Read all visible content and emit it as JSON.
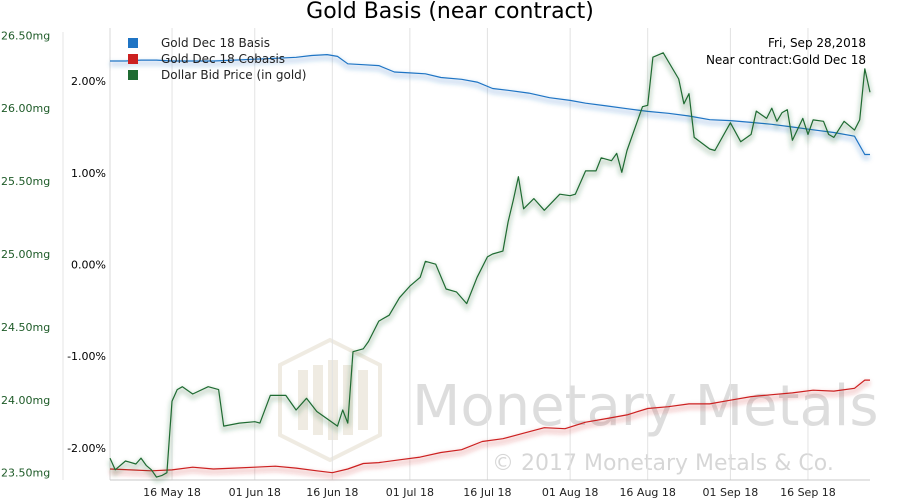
{
  "chart_data": {
    "type": "line",
    "title": "Gold Basis (near contract)",
    "info": {
      "date": "Fri, Sep 28,2018",
      "contract": "Near contract:Gold Dec 18"
    },
    "colors": {
      "basis": "#1f74c4",
      "cobasis": "#cc2020",
      "price": "#1f6b32"
    },
    "x_range": [
      "2018-05-04",
      "2018-09-28"
    ],
    "x_ticks": [
      {
        "date": "2018-05-16",
        "label": "16 May 18"
      },
      {
        "date": "2018-06-01",
        "label": "01 Jun 18"
      },
      {
        "date": "2018-06-16",
        "label": "16 Jun 18"
      },
      {
        "date": "2018-07-01",
        "label": "01 Jul 18"
      },
      {
        "date": "2018-07-16",
        "label": "16 Jul 18"
      },
      {
        "date": "2018-08-01",
        "label": "01 Aug 18"
      },
      {
        "date": "2018-08-16",
        "label": "16 Aug 18"
      },
      {
        "date": "2018-09-01",
        "label": "01 Sep 18"
      },
      {
        "date": "2018-09-16",
        "label": "16 Sep 18"
      }
    ],
    "y_left": {
      "unit": "mg",
      "range": [
        23.45,
        26.55
      ],
      "ticks": [
        {
          "value": 23.5,
          "label": "23.50mg"
        },
        {
          "value": 24.0,
          "label": "24.00mg"
        },
        {
          "value": 24.5,
          "label": "24.50mg"
        },
        {
          "value": 25.0,
          "label": "25.00mg"
        },
        {
          "value": 25.5,
          "label": "25.50mg"
        },
        {
          "value": 26.0,
          "label": "26.00mg"
        },
        {
          "value": 26.5,
          "label": "26.50mg"
        }
      ]
    },
    "y_right": {
      "unit": "%",
      "range": [
        -2.35,
        2.58
      ],
      "ticks": [
        {
          "value": -2.0,
          "label": "-2.00%"
        },
        {
          "value": -1.0,
          "label": "-1.00%"
        },
        {
          "value": 0.0,
          "label": "0.00%"
        },
        {
          "value": 1.0,
          "label": "1.00%"
        },
        {
          "value": 2.0,
          "label": "2.00%"
        }
      ]
    },
    "legend_position": "top-left",
    "legend": [
      {
        "key": "basis",
        "label": "Gold Dec 18 Basis"
      },
      {
        "key": "cobasis",
        "label": "Gold Dec 18 Cobasis"
      },
      {
        "key": "price",
        "label": "Dollar Bid Price (in gold)"
      }
    ],
    "series": [
      {
        "name": "Gold Dec 18 Basis",
        "key": "basis",
        "axis": "right",
        "points": [
          [
            "2018-05-04",
            2.22
          ],
          [
            "2018-05-07",
            2.22
          ],
          [
            "2018-05-10",
            2.23
          ],
          [
            "2018-05-13",
            2.23
          ],
          [
            "2018-05-16",
            2.22
          ],
          [
            "2018-05-20",
            2.22
          ],
          [
            "2018-05-24",
            2.22
          ],
          [
            "2018-05-28",
            2.23
          ],
          [
            "2018-06-01",
            2.24
          ],
          [
            "2018-06-05",
            2.25
          ],
          [
            "2018-06-09",
            2.26
          ],
          [
            "2018-06-12",
            2.28
          ],
          [
            "2018-06-15",
            2.29
          ],
          [
            "2018-06-17",
            2.27
          ],
          [
            "2018-06-19",
            2.19
          ],
          [
            "2018-06-22",
            2.18
          ],
          [
            "2018-06-25",
            2.17
          ],
          [
            "2018-06-28",
            2.1
          ],
          [
            "2018-07-01",
            2.09
          ],
          [
            "2018-07-04",
            2.08
          ],
          [
            "2018-07-07",
            2.04
          ],
          [
            "2018-07-11",
            2.02
          ],
          [
            "2018-07-14",
            1.99
          ],
          [
            "2018-07-17",
            1.92
          ],
          [
            "2018-07-20",
            1.9
          ],
          [
            "2018-07-24",
            1.87
          ],
          [
            "2018-07-28",
            1.82
          ],
          [
            "2018-08-01",
            1.79
          ],
          [
            "2018-08-04",
            1.76
          ],
          [
            "2018-08-08",
            1.73
          ],
          [
            "2018-08-12",
            1.7
          ],
          [
            "2018-08-16",
            1.67
          ],
          [
            "2018-08-20",
            1.65
          ],
          [
            "2018-08-24",
            1.62
          ],
          [
            "2018-08-28",
            1.58
          ],
          [
            "2018-09-01",
            1.57
          ],
          [
            "2018-09-05",
            1.55
          ],
          [
            "2018-09-09",
            1.53
          ],
          [
            "2018-09-13",
            1.5
          ],
          [
            "2018-09-17",
            1.47
          ],
          [
            "2018-09-21",
            1.44
          ],
          [
            "2018-09-25",
            1.4
          ],
          [
            "2018-09-27",
            1.2
          ],
          [
            "2018-09-28",
            1.2
          ]
        ]
      },
      {
        "name": "Gold Dec 18 Cobasis",
        "key": "cobasis",
        "axis": "right",
        "points": [
          [
            "2018-05-04",
            -2.23
          ],
          [
            "2018-05-08",
            -2.24
          ],
          [
            "2018-05-12",
            -2.25
          ],
          [
            "2018-05-16",
            -2.24
          ],
          [
            "2018-05-20",
            -2.21
          ],
          [
            "2018-05-24",
            -2.23
          ],
          [
            "2018-05-28",
            -2.22
          ],
          [
            "2018-06-01",
            -2.21
          ],
          [
            "2018-06-05",
            -2.2
          ],
          [
            "2018-06-09",
            -2.22
          ],
          [
            "2018-06-13",
            -2.25
          ],
          [
            "2018-06-16",
            -2.27
          ],
          [
            "2018-06-19",
            -2.23
          ],
          [
            "2018-06-22",
            -2.17
          ],
          [
            "2018-06-25",
            -2.16
          ],
          [
            "2018-06-29",
            -2.13
          ],
          [
            "2018-07-03",
            -2.1
          ],
          [
            "2018-07-07",
            -2.05
          ],
          [
            "2018-07-11",
            -2.02
          ],
          [
            "2018-07-15",
            -1.93
          ],
          [
            "2018-07-19",
            -1.9
          ],
          [
            "2018-07-23",
            -1.84
          ],
          [
            "2018-07-27",
            -1.78
          ],
          [
            "2018-07-31",
            -1.79
          ],
          [
            "2018-08-04",
            -1.72
          ],
          [
            "2018-08-08",
            -1.68
          ],
          [
            "2018-08-12",
            -1.64
          ],
          [
            "2018-08-16",
            -1.57
          ],
          [
            "2018-08-20",
            -1.55
          ],
          [
            "2018-08-24",
            -1.52
          ],
          [
            "2018-08-28",
            -1.52
          ],
          [
            "2018-09-01",
            -1.48
          ],
          [
            "2018-09-05",
            -1.44
          ],
          [
            "2018-09-09",
            -1.42
          ],
          [
            "2018-09-13",
            -1.4
          ],
          [
            "2018-09-17",
            -1.37
          ],
          [
            "2018-09-21",
            -1.38
          ],
          [
            "2018-09-25",
            -1.35
          ],
          [
            "2018-09-27",
            -1.26
          ],
          [
            "2018-09-28",
            -1.26
          ]
        ]
      },
      {
        "name": "Dollar Bid Price (in gold)",
        "key": "price",
        "axis": "left",
        "points": [
          [
            "2018-05-04",
            23.6
          ],
          [
            "2018-05-05",
            23.52
          ],
          [
            "2018-05-07",
            23.58
          ],
          [
            "2018-05-09",
            23.56
          ],
          [
            "2018-05-10",
            23.6
          ],
          [
            "2018-05-11",
            23.55
          ],
          [
            "2018-05-12",
            23.52
          ],
          [
            "2018-05-13",
            23.47
          ],
          [
            "2018-05-14",
            23.48
          ],
          [
            "2018-05-15",
            23.5
          ],
          [
            "2018-05-16",
            23.99
          ],
          [
            "2018-05-17",
            24.07
          ],
          [
            "2018-05-18",
            24.09
          ],
          [
            "2018-05-20",
            24.04
          ],
          [
            "2018-05-23",
            24.09
          ],
          [
            "2018-05-25",
            24.07
          ],
          [
            "2018-05-26",
            23.82
          ],
          [
            "2018-05-29",
            23.84
          ],
          [
            "2018-06-01",
            23.85
          ],
          [
            "2018-06-02",
            23.84
          ],
          [
            "2018-06-04",
            24.03
          ],
          [
            "2018-06-07",
            24.03
          ],
          [
            "2018-06-09",
            23.93
          ],
          [
            "2018-06-11",
            24.01
          ],
          [
            "2018-06-13",
            23.92
          ],
          [
            "2018-06-15",
            23.87
          ],
          [
            "2018-06-17",
            23.82
          ],
          [
            "2018-06-18",
            23.93
          ],
          [
            "2018-06-19",
            23.84
          ],
          [
            "2018-06-20",
            24.33
          ],
          [
            "2018-06-22",
            24.35
          ],
          [
            "2018-06-23",
            24.4
          ],
          [
            "2018-06-25",
            24.54
          ],
          [
            "2018-06-27",
            24.58
          ],
          [
            "2018-06-29",
            24.7
          ],
          [
            "2018-07-01",
            24.78
          ],
          [
            "2018-07-03",
            24.84
          ],
          [
            "2018-07-04",
            24.95
          ],
          [
            "2018-07-06",
            24.93
          ],
          [
            "2018-07-08",
            24.76
          ],
          [
            "2018-07-10",
            24.74
          ],
          [
            "2018-07-12",
            24.66
          ],
          [
            "2018-07-14",
            24.84
          ],
          [
            "2018-07-16",
            24.98
          ],
          [
            "2018-07-17",
            25.0
          ],
          [
            "2018-07-19",
            25.02
          ],
          [
            "2018-07-20",
            25.22
          ],
          [
            "2018-07-21",
            25.37
          ],
          [
            "2018-07-22",
            25.53
          ],
          [
            "2018-07-23",
            25.31
          ],
          [
            "2018-07-25",
            25.38
          ],
          [
            "2018-07-27",
            25.3
          ],
          [
            "2018-07-30",
            25.41
          ],
          [
            "2018-08-01",
            25.4
          ],
          [
            "2018-08-02",
            25.41
          ],
          [
            "2018-08-04",
            25.57
          ],
          [
            "2018-08-06",
            25.57
          ],
          [
            "2018-08-07",
            25.66
          ],
          [
            "2018-08-09",
            25.64
          ],
          [
            "2018-08-10",
            25.69
          ],
          [
            "2018-08-11",
            25.56
          ],
          [
            "2018-08-12",
            25.71
          ],
          [
            "2018-08-15",
            26.01
          ],
          [
            "2018-08-16",
            26.02
          ],
          [
            "2018-08-17",
            26.35
          ],
          [
            "2018-08-19",
            26.38
          ],
          [
            "2018-08-22",
            26.2
          ],
          [
            "2018-08-23",
            26.03
          ],
          [
            "2018-08-24",
            26.1
          ],
          [
            "2018-08-25",
            25.8
          ],
          [
            "2018-08-28",
            25.72
          ],
          [
            "2018-08-29",
            25.71
          ],
          [
            "2018-09-01",
            25.9
          ],
          [
            "2018-09-03",
            25.77
          ],
          [
            "2018-09-05",
            25.82
          ],
          [
            "2018-09-06",
            25.98
          ],
          [
            "2018-09-08",
            25.93
          ],
          [
            "2018-09-09",
            26.0
          ],
          [
            "2018-09-10",
            25.91
          ],
          [
            "2018-09-11",
            25.97
          ],
          [
            "2018-09-12",
            25.99
          ],
          [
            "2018-09-13",
            25.78
          ],
          [
            "2018-09-15",
            25.93
          ],
          [
            "2018-09-16",
            25.82
          ],
          [
            "2018-09-17",
            25.92
          ],
          [
            "2018-09-19",
            25.91
          ],
          [
            "2018-09-20",
            25.82
          ],
          [
            "2018-09-21",
            25.8
          ],
          [
            "2018-09-23",
            25.91
          ],
          [
            "2018-09-24",
            25.88
          ],
          [
            "2018-09-25",
            25.85
          ],
          [
            "2018-09-26",
            25.92
          ],
          [
            "2018-09-27",
            26.27
          ],
          [
            "2018-09-28",
            26.11
          ]
        ]
      }
    ]
  },
  "watermark": {
    "brand": "Monetary Metals",
    "copyright": "© 2017 Monetary Metals & Co."
  }
}
